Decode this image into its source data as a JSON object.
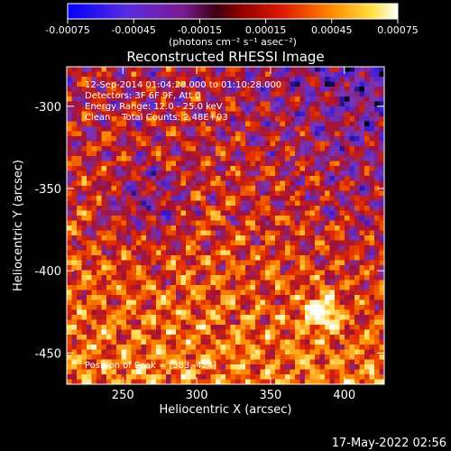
{
  "colorbar": {
    "ticks": [
      "-0.00075",
      "-0.00045",
      "-0.00015",
      "0.00015",
      "0.00045",
      "0.00075"
    ],
    "unit_label": "(photons cm⁻² s⁻¹ asec⁻²)",
    "range": [
      -0.00075,
      0.00075
    ]
  },
  "chart_data": {
    "type": "heatmap",
    "title": "Reconstructed RHESSI Image",
    "xlabel": "Heliocentric X (arcsec)",
    "ylabel": "Heliocentric Y (arcsec)",
    "xlim": [
      212,
      427
    ],
    "ylim": [
      -469,
      -276
    ],
    "xticks": [
      250,
      300,
      350,
      400
    ],
    "yticks": [
      -300,
      -350,
      -400,
      -450
    ],
    "annotations": [
      "12-Sep-2014 01:04:28.000 to 01:10:28.000",
      "Detectors: 3F 6F 9F, Att 0",
      "Energy Range: 12.0 - 25.0 keV",
      "Clean    Total Counts: 2.48E+03"
    ],
    "peak_label": "Position of Peak = [383,-424]",
    "peak": [
      383,
      -424
    ],
    "grid": false,
    "colormap": [
      "#000000",
      "#3b1bd8",
      "#7a34b8",
      "#a0103a",
      "#e02a00",
      "#ff8a00",
      "#ffe060",
      "#ffffff"
    ]
  },
  "footer": {
    "timestamp": "17-May-2022 02:56"
  }
}
